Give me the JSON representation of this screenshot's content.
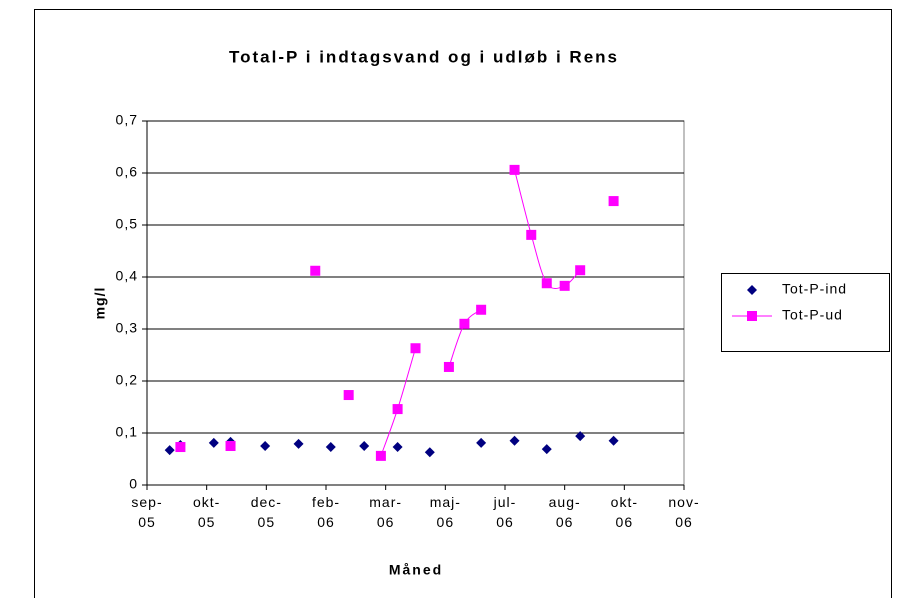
{
  "chart_data": {
    "type": "scatter",
    "title": "Total-P i indtagsvand og i udløb i Rens",
    "x_label": "Måned",
    "y_label": "mg/l",
    "xlim": [
      38600,
      39050
    ],
    "xticks": [
      {
        "value": 38600,
        "label": "sep-05"
      },
      {
        "value": 38650,
        "label": "okt-05"
      },
      {
        "value": 38700,
        "label": "dec-05"
      },
      {
        "value": 38750,
        "label": "feb-06"
      },
      {
        "value": 38800,
        "label": "mar-06"
      },
      {
        "value": 38850,
        "label": "maj-06"
      },
      {
        "value": 38900,
        "label": "jul-06"
      },
      {
        "value": 38950,
        "label": "aug-06"
      },
      {
        "value": 39000,
        "label": "okt-06"
      },
      {
        "value": 39050,
        "label": "nov-06"
      }
    ],
    "ylim": [
      0,
      0.7
    ],
    "yticks": [
      0,
      {
        "value": 0.1,
        "label": "0,1"
      },
      {
        "value": 0.2,
        "label": "0,2"
      },
      {
        "value": 0.3,
        "label": "0,3"
      },
      {
        "value": 0.4,
        "label": "0,4"
      },
      {
        "value": 0.5,
        "label": "0,5"
      },
      {
        "value": 0.6,
        "label": "0,6"
      },
      {
        "value": 0.7,
        "label": "0,7"
      }
    ],
    "grid": true,
    "legend": "right",
    "series": [
      {
        "name": "Tot-P-ind",
        "color": "#000080",
        "marker": "diamond",
        "line": false,
        "x": [
          38619,
          38628,
          38656,
          38670,
          38699,
          38727,
          38754,
          38782,
          38810,
          38837,
          38880,
          38908,
          38935,
          38963,
          38991
        ],
        "values": [
          0.067,
          0.077,
          0.081,
          0.083,
          0.075,
          0.079,
          0.073,
          0.075,
          0.073,
          0.063,
          0.081,
          0.085,
          0.069,
          0.094,
          0.085
        ]
      },
      {
        "name": "Tot-P-ud",
        "color": "#ff00ff",
        "marker": "square",
        "line": true,
        "x": [
          38628,
          null,
          38670,
          null,
          38741,
          null,
          38769,
          null,
          38796,
          38810,
          38825,
          null,
          38853,
          38866,
          38880,
          null,
          38908,
          38922,
          38935,
          38950,
          38963,
          null,
          38991
        ],
        "values": [
          0.073,
          null,
          0.075,
          null,
          0.412,
          null,
          0.173,
          null,
          0.056,
          0.146,
          0.263,
          null,
          0.227,
          0.31,
          0.337,
          null,
          0.606,
          0.481,
          0.388,
          0.383,
          0.413,
          null,
          0.546
        ]
      }
    ]
  }
}
